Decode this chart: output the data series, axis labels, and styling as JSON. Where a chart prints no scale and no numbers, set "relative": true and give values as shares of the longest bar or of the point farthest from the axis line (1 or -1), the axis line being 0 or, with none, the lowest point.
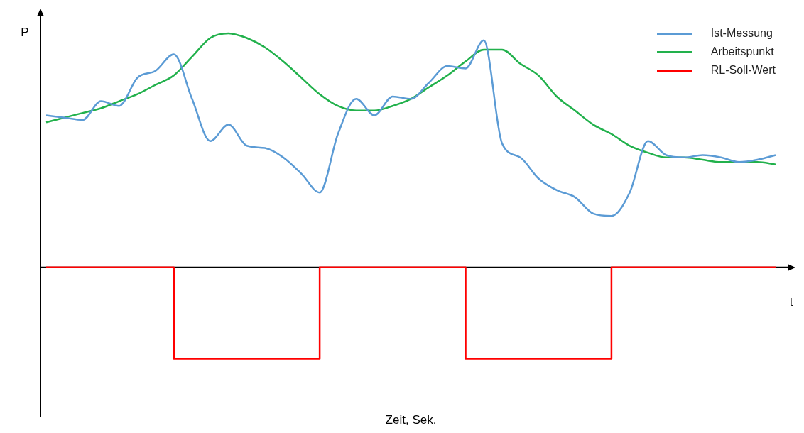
{
  "chart_data": {
    "type": "line",
    "relative": true,
    "ylabel": "P",
    "xlabel": "Zeit, Sek.",
    "annotations": [
      "t"
    ],
    "legend": "top right",
    "marker": "none",
    "categories": [
      null,
      null,
      null,
      null,
      null,
      null,
      null,
      null,
      null,
      null,
      null,
      null,
      null,
      null,
      null,
      null,
      null,
      null,
      null,
      null,
      null,
      null,
      null,
      null,
      null,
      null,
      null,
      null,
      null,
      null,
      null,
      null,
      null,
      null,
      null,
      null,
      null,
      null,
      null,
      null,
      null
    ],
    "series": [
      {
        "name": "Ist-Messung",
        "color": "#5b9bd5",
        "values": [
          0.65,
          0.64,
          0.63,
          0.71,
          0.69,
          0.81,
          0.84,
          0.91,
          0.72,
          0.54,
          0.61,
          0.52,
          0.51,
          0.47,
          0.4,
          0.32,
          0.57,
          0.72,
          0.65,
          0.73,
          0.72,
          0.79,
          0.86,
          0.85,
          0.97,
          0.53,
          0.47,
          0.38,
          0.33,
          0.3,
          0.23,
          0.22,
          0.32,
          0.54,
          0.48,
          0.47,
          0.48,
          0.47,
          0.45,
          0.46,
          0.48
        ]
      },
      {
        "name": "Arbeitspunkt",
        "color": "#22b14c",
        "values": [
          0.62,
          0.64,
          0.66,
          0.68,
          0.71,
          0.74,
          0.78,
          0.82,
          0.9,
          0.98,
          1.0,
          0.98,
          0.94,
          0.88,
          0.81,
          0.74,
          0.69,
          0.67,
          0.67,
          0.69,
          0.72,
          0.77,
          0.82,
          0.88,
          0.93,
          0.93,
          0.87,
          0.82,
          0.73,
          0.67,
          0.61,
          0.57,
          0.52,
          0.49,
          0.47,
          0.47,
          0.46,
          0.45,
          0.45,
          0.45,
          0.44
        ]
      },
      {
        "name": "RL-Soll-Wert",
        "type": "step",
        "color": "#ff0000",
        "values": [
          0,
          0,
          0,
          0,
          0,
          0,
          0,
          0,
          -0.39,
          -0.39,
          -0.39,
          -0.39,
          -0.39,
          -0.39,
          -0.39,
          -0.39,
          0,
          0,
          0,
          0,
          0,
          0,
          0,
          0,
          -0.39,
          -0.39,
          -0.39,
          -0.39,
          -0.39,
          -0.39,
          -0.39,
          -0.39,
          0,
          0,
          0,
          0,
          0,
          0,
          0,
          0,
          0
        ]
      }
    ]
  }
}
